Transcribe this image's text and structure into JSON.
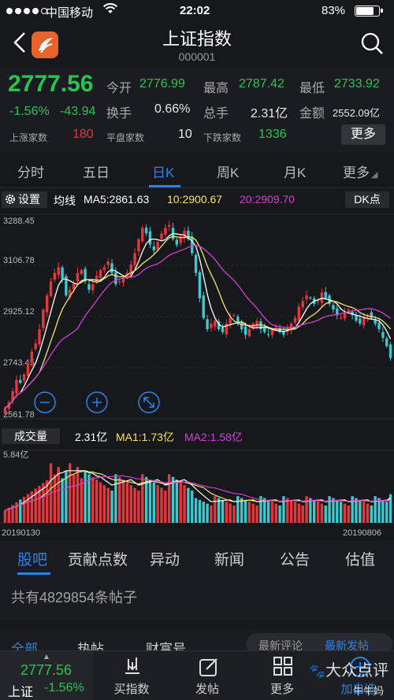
{
  "status_bar": {
    "carrier": "中国移动",
    "time": "22:02",
    "battery_pct_text": "83%",
    "battery_level": 0.83
  },
  "header": {
    "title": "上证指数",
    "code": "000001"
  },
  "quote": {
    "price": "2777.56",
    "change_pct": "-1.56%",
    "change_abs": "-43.94",
    "open_label": "今开",
    "open": "2776.99",
    "high_label": "最高",
    "high": "2787.42",
    "low_label": "最低",
    "low": "2733.92",
    "turnover_label": "换手",
    "turnover": "0.66%",
    "volume_label": "总手",
    "volume": "2.31亿",
    "amount_label": "金额",
    "amount": "2552.09亿",
    "up_label": "上涨家数",
    "up": "180",
    "flat_label": "平盘家数",
    "flat": "10",
    "down_label": "下跌家数",
    "down": "1336",
    "more_label": "更多"
  },
  "tabs": [
    "分时",
    "五日",
    "日K",
    "周K",
    "月K",
    "更多"
  ],
  "ma_bar": {
    "settings_label": "设置",
    "ma_label": "均线",
    "ma5": "MA5:2861.63",
    "ma10": "10:2900.67",
    "ma20": "20:2909.70",
    "dk_label": "DK点"
  },
  "price_axis": [
    "3288.45",
    "3106.78",
    "2925.12",
    "2743.45",
    "2561.78"
  ],
  "volume_bar": {
    "label": "成交量",
    "vol": "2.31亿",
    "ma1": "MA1:1.73亿",
    "ma2": "MA2:1.58亿",
    "axis_max": "5.84亿"
  },
  "date_range": {
    "start": "20190130",
    "end": "20190806"
  },
  "sub_tabs": [
    "股吧",
    "贡献点数",
    "异动",
    "新闻",
    "公告",
    "估值"
  ],
  "post_count_text": "共有4829854条帖子",
  "filter_row": [
    "全部",
    "热帖",
    "财富号",
    "最新评论",
    "最新发帖"
  ],
  "bottom_nav": {
    "price": "2777.56",
    "index_name": "上证",
    "change": "-1.56%",
    "buy_label": "买指数",
    "post_label": "发帖",
    "more_label": "更多",
    "add_label": "加自选"
  },
  "watermark": {
    "brand": "大众点评",
    "user": "牛牛妈"
  },
  "colors": {
    "up": "#e8363b",
    "down": "#28c350",
    "accent": "#2d82ea",
    "ma5": "#ffffff",
    "ma10": "#f3e46b",
    "ma20": "#d63dd6",
    "candle_up": "#e8363b",
    "candle_down": "#3cc9cf"
  },
  "chart_data": {
    "type": "candlestick",
    "x_range": [
      "20190130",
      "20190806"
    ],
    "ylim": [
      2561.78,
      3288.45
    ],
    "y_ticks": [
      3288.45,
      3106.78,
      2925.12,
      2743.45,
      2561.78
    ],
    "series": [
      {
        "name": "MA5",
        "last": 2861.63
      },
      {
        "name": "10",
        "last": 2900.67
      },
      {
        "name": "20",
        "last": 2909.7
      }
    ],
    "close_approx": [
      2600,
      2620,
      2660,
      2700,
      2690,
      2720,
      2760,
      2800,
      2830,
      2880,
      2950,
      3000,
      3050,
      3080,
      3100,
      3060,
      3000,
      3020,
      3040,
      3080,
      3090,
      3050,
      3020,
      3040,
      3070,
      3090,
      3100,
      3120,
      3080,
      3040,
      3050,
      3060,
      3080,
      3110,
      3150,
      3200,
      3240,
      3220,
      3180,
      3160,
      3190,
      3220,
      3240,
      3250,
      3200,
      3180,
      3210,
      3230,
      3200,
      3150,
      3080,
      2990,
      2920,
      2880,
      2900,
      2910,
      2880,
      2870,
      2900,
      2920,
      2930,
      2900,
      2880,
      2860,
      2880,
      2900,
      2910,
      2880,
      2870,
      2860,
      2880,
      2890,
      2870,
      2860,
      2880,
      2900,
      2920,
      2960,
      2980,
      3000,
      2990,
      2970,
      2980,
      3010,
      2990,
      2970,
      2950,
      2930,
      2920,
      2940,
      2950,
      2930,
      2910,
      2900,
      2920,
      2930,
      2920,
      2900,
      2880,
      2850,
      2820,
      2777.56
    ],
    "volume_ylim": [
      0,
      5.84
    ],
    "volume_last": 2.31,
    "volume_ma1": 1.73,
    "volume_ma2": 1.58
  }
}
